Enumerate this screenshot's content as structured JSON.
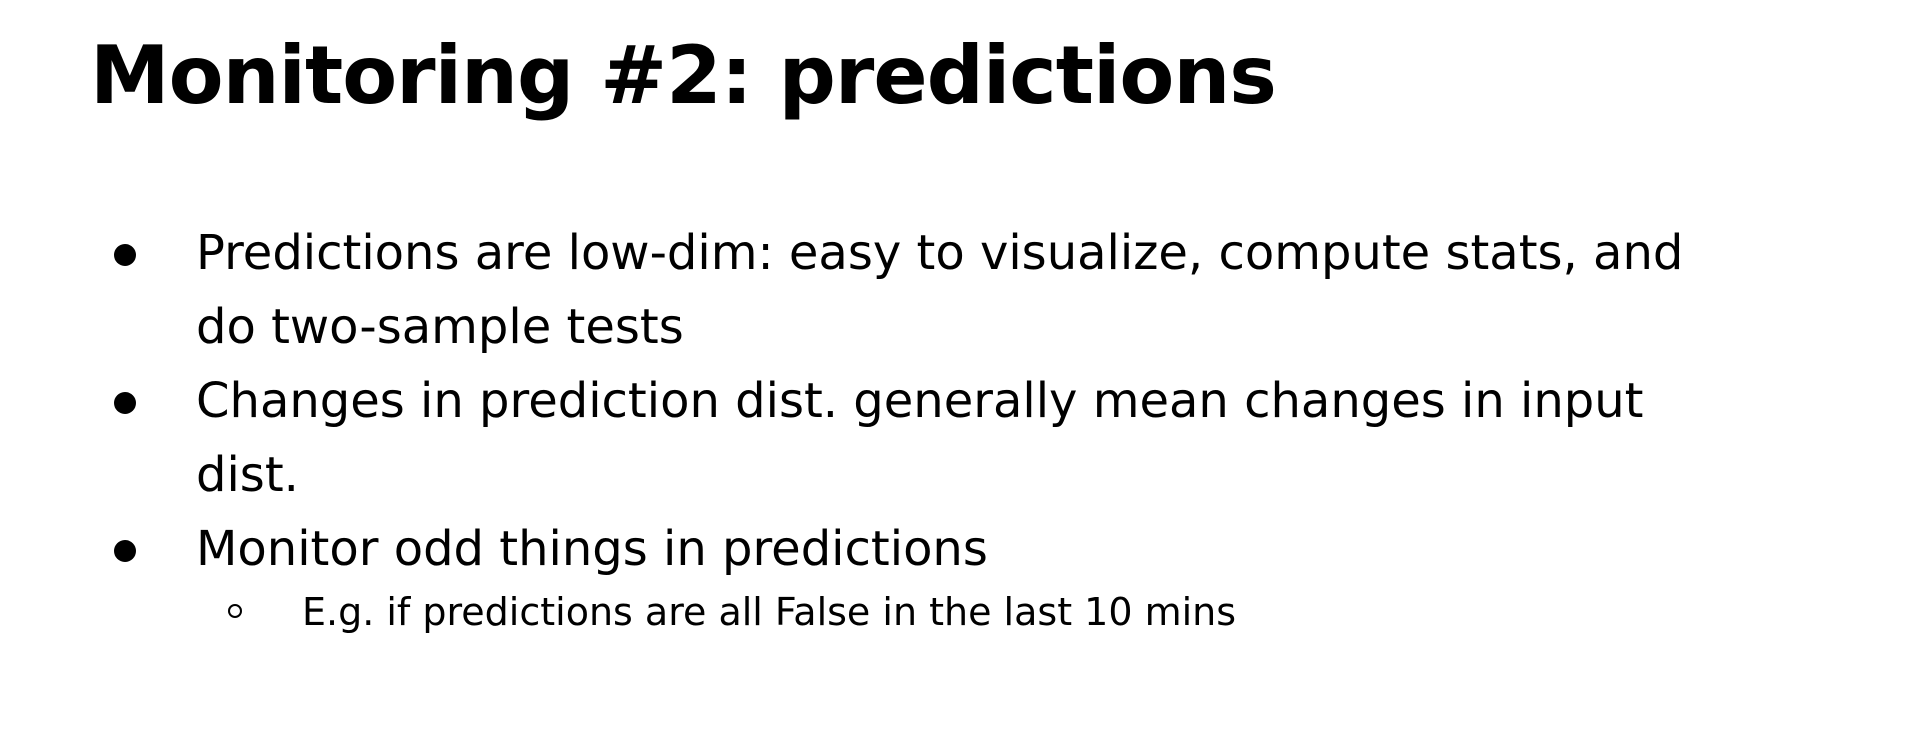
{
  "slide": {
    "title": "Monitoring #2: predictions",
    "bullets": [
      "Predictions are low-dim: easy to visualize, compute stats, and do two-sample tests",
      "Changes in prediction dist. generally mean changes in input dist.",
      "Monitor odd things in predictions"
    ],
    "sub_bullets": [
      "E.g. if predictions are all False in the last 10 mins"
    ]
  }
}
